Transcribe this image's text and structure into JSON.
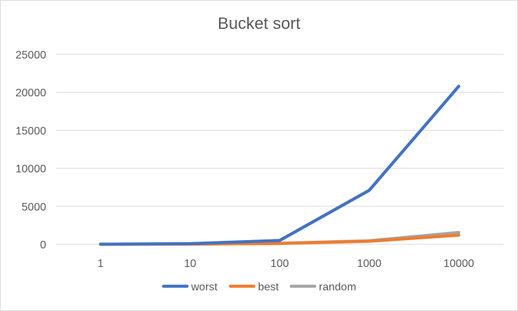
{
  "chart_data": {
    "type": "line",
    "title": "Bucket sort",
    "xlabel": "",
    "ylabel": "",
    "categories": [
      "1",
      "10",
      "100",
      "1000",
      "10000"
    ],
    "ylim": [
      0,
      25000
    ],
    "yticks": [
      0,
      5000,
      10000,
      15000,
      20000,
      25000
    ],
    "grid": true,
    "legend_position": "bottom",
    "series": [
      {
        "name": "worst",
        "color": "#4472C4",
        "values": [
          10,
          80,
          500,
          7100,
          20800
        ]
      },
      {
        "name": "best",
        "color": "#ED7D31",
        "values": [
          5,
          20,
          100,
          400,
          1200
        ]
      },
      {
        "name": "random",
        "color": "#A5A5A5",
        "values": [
          5,
          25,
          120,
          450,
          1550
        ]
      }
    ]
  }
}
